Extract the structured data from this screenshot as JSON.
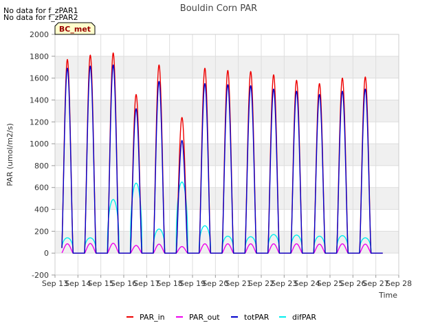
{
  "notes": [
    "No data for f_zPAR1",
    "No data for f_zPAR2"
  ],
  "site_badge": "BC_met",
  "chart_data": {
    "type": "line",
    "title": "Bouldin Corn PAR",
    "xlabel": "Time",
    "ylabel": "PAR (umol/m2/s)",
    "ylim": [
      -200,
      2000
    ],
    "yticks": [
      -200,
      0,
      200,
      400,
      600,
      800,
      1000,
      1200,
      1400,
      1600,
      1800,
      2000
    ],
    "xlim": [
      13,
      28
    ],
    "xticks": [
      {
        "day": 13,
        "label": "Sep 13"
      },
      {
        "day": 14,
        "label": "Sep 14"
      },
      {
        "day": 15,
        "label": "Sep 15"
      },
      {
        "day": 16,
        "label": "Sep 16"
      },
      {
        "day": 17,
        "label": "Sep 17"
      },
      {
        "day": 18,
        "label": "Sep 18"
      },
      {
        "day": 19,
        "label": "Sep 19"
      },
      {
        "day": 20,
        "label": "Sep 20"
      },
      {
        "day": 21,
        "label": "Sep 21"
      },
      {
        "day": 22,
        "label": "Sep 22"
      },
      {
        "day": 23,
        "label": "Sep 23"
      },
      {
        "day": 24,
        "label": "Sep 24"
      },
      {
        "day": 25,
        "label": "Sep 25"
      },
      {
        "day": 26,
        "label": "Sep 26"
      },
      {
        "day": 27,
        "label": "Sep 27"
      },
      {
        "day": 28,
        "label": "Sep 28"
      }
    ],
    "grid": true,
    "legend_position": "bottom",
    "day_range": [
      13.3,
      27.3
    ],
    "series": [
      {
        "name": "PAR_in",
        "color": "#ee0000",
        "daily_peaks": [
          1770,
          1810,
          1830,
          1450,
          1720,
          1240,
          1690,
          1670,
          1660,
          1630,
          1580,
          1550,
          1600,
          1610
        ]
      },
      {
        "name": "PAR_out",
        "color": "#ee00ee",
        "daily_peaks": [
          85,
          88,
          90,
          70,
          82,
          60,
          85,
          85,
          85,
          85,
          85,
          82,
          85,
          82
        ]
      },
      {
        "name": "totPAR",
        "color": "#0000cc",
        "daily_peaks": [
          1690,
          1710,
          1720,
          1320,
          1570,
          1030,
          1550,
          1540,
          1530,
          1500,
          1480,
          1450,
          1480,
          1500
        ]
      },
      {
        "name": "difPAR",
        "color": "#00eeee",
        "daily_peaks": [
          140,
          140,
          490,
          640,
          220,
          650,
          250,
          155,
          150,
          170,
          165,
          155,
          160,
          140
        ]
      }
    ]
  }
}
